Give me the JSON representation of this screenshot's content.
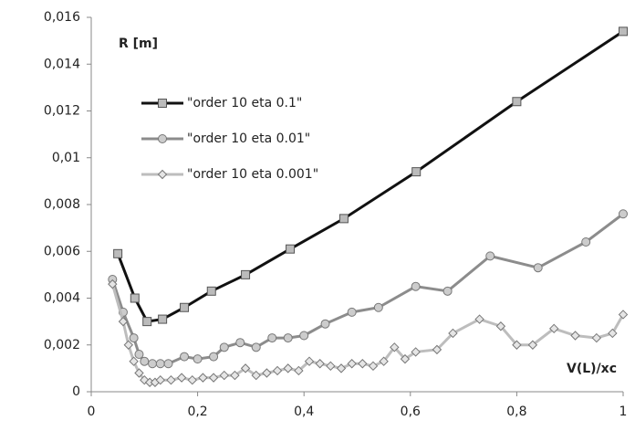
{
  "chart_data": {
    "type": "line",
    "y_label": "R [m]",
    "x_label": "V(L)/xc",
    "legend": "upper left",
    "xlim": [
      0,
      1
    ],
    "xticks": [
      0,
      {
        "value": 0.2,
        "label": "0,2"
      },
      {
        "value": 0.4,
        "label": "0,4"
      },
      {
        "value": 0.6,
        "label": "0,6"
      },
      {
        "value": 0.8,
        "label": "0,8"
      },
      1
    ],
    "ylim": [
      0,
      0.016
    ],
    "yticks": [
      0,
      {
        "value": 0.002,
        "label": "0,002"
      },
      {
        "value": 0.004,
        "label": "0,004"
      },
      {
        "value": 0.006,
        "label": "0,006"
      },
      {
        "value": 0.008,
        "label": "0,008"
      },
      {
        "value": 0.01,
        "label": "0,01"
      },
      {
        "value": 0.012,
        "label": "0,012"
      },
      {
        "value": 0.014,
        "label": "0,014"
      },
      {
        "value": 0.016,
        "label": "0,016"
      }
    ],
    "series": [
      {
        "name": "\"order 10 eta 0.1\"",
        "color": "#111111",
        "marker": "square",
        "x": [
          0.05,
          0.082,
          0.105,
          0.134,
          0.175,
          0.226,
          0.29,
          0.374,
          0.475,
          0.611,
          0.8,
          1.0
        ],
        "values": [
          0.0059,
          0.004,
          0.003,
          0.0031,
          0.0036,
          0.0043,
          0.005,
          0.0061,
          0.0074,
          0.0094,
          0.0124,
          0.0154
        ]
      },
      {
        "name": "\"order 10 eta 0.01\"",
        "color": "#8c8c8c",
        "marker": "circle",
        "x": [
          0.04,
          0.06,
          0.08,
          0.09,
          0.1,
          0.115,
          0.13,
          0.145,
          0.175,
          0.2,
          0.23,
          0.25,
          0.28,
          0.31,
          0.34,
          0.37,
          0.4,
          0.44,
          0.49,
          0.54,
          0.61,
          0.67,
          0.75,
          0.84,
          0.93,
          1.0
        ],
        "values": [
          0.0048,
          0.0034,
          0.0023,
          0.0016,
          0.0013,
          0.0012,
          0.0012,
          0.0012,
          0.0015,
          0.0014,
          0.0015,
          0.0019,
          0.0021,
          0.0019,
          0.0023,
          0.0023,
          0.0024,
          0.0029,
          0.0034,
          0.0036,
          0.0045,
          0.0043,
          0.0058,
          0.0053,
          0.0064,
          0.0076
        ]
      },
      {
        "name": "\"order 10 eta 0.001\"",
        "color": "#bdbdbd",
        "marker": "diamond",
        "x": [
          0.04,
          0.06,
          0.07,
          0.08,
          0.09,
          0.1,
          0.11,
          0.12,
          0.13,
          0.15,
          0.17,
          0.19,
          0.21,
          0.23,
          0.25,
          0.27,
          0.29,
          0.31,
          0.33,
          0.35,
          0.37,
          0.39,
          0.41,
          0.43,
          0.45,
          0.47,
          0.49,
          0.51,
          0.53,
          0.55,
          0.57,
          0.59,
          0.61,
          0.65,
          0.68,
          0.73,
          0.77,
          0.8,
          0.83,
          0.87,
          0.91,
          0.95,
          0.98,
          1.0
        ],
        "values": [
          0.0046,
          0.003,
          0.002,
          0.0013,
          0.0008,
          0.0005,
          0.0004,
          0.0004,
          0.0005,
          0.0005,
          0.0006,
          0.0005,
          0.0006,
          0.0006,
          0.0007,
          0.0007,
          0.001,
          0.0007,
          0.0008,
          0.0009,
          0.001,
          0.0009,
          0.0013,
          0.0012,
          0.0011,
          0.001,
          0.0012,
          0.0012,
          0.0011,
          0.0013,
          0.0019,
          0.0014,
          0.0017,
          0.0018,
          0.0025,
          0.0031,
          0.0028,
          0.002,
          0.002,
          0.0027,
          0.0024,
          0.0023,
          0.0025,
          0.0033
        ]
      }
    ]
  }
}
